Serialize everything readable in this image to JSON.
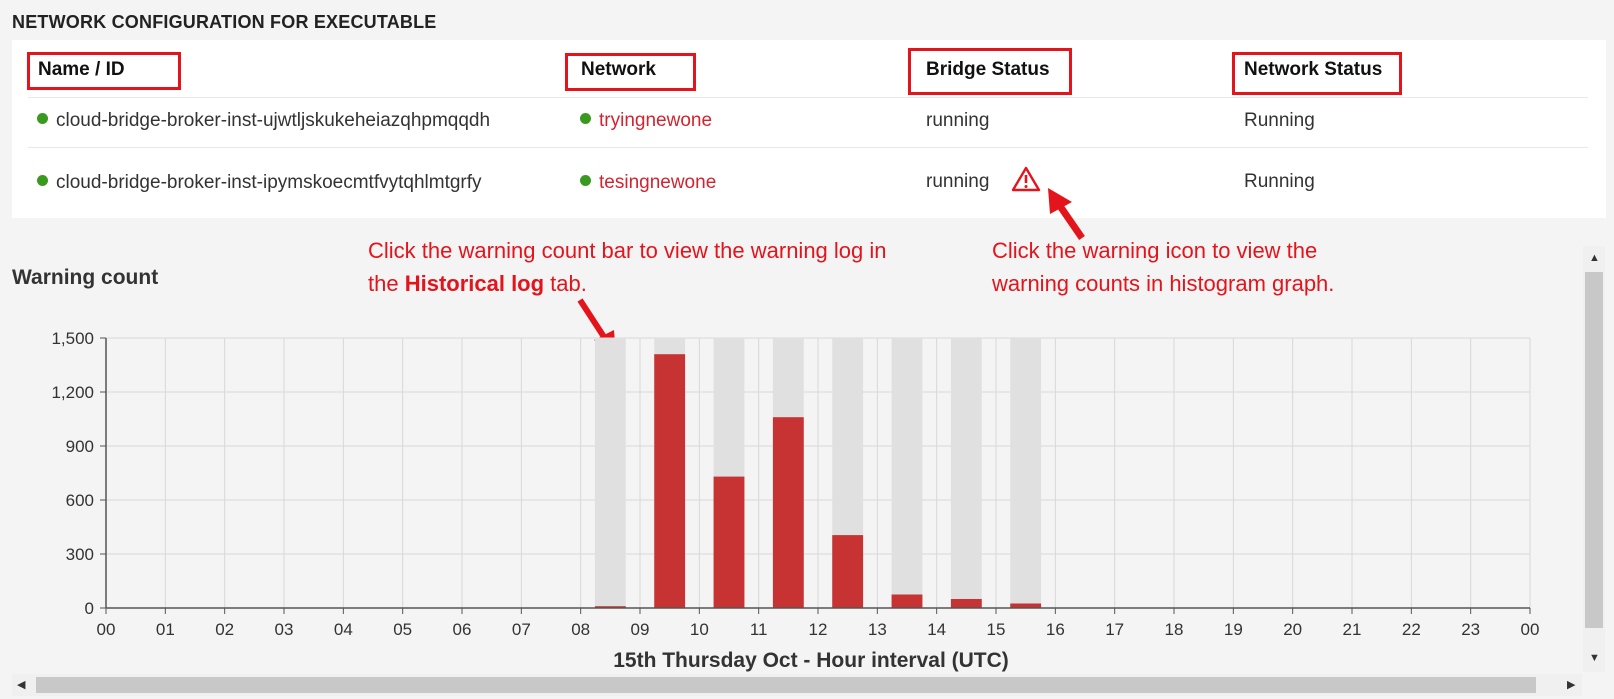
{
  "section_title": "NETWORK CONFIGURATION FOR EXECUTABLE",
  "table": {
    "headers": [
      "Name / ID",
      "Network",
      "Bridge Status",
      "Network Status"
    ],
    "rows": [
      {
        "name": "cloud-bridge-broker-inst-ujwtljskukeheiazqhpmqqdh",
        "network": "tryingnewone",
        "bridge_status": "running",
        "network_status": "Running",
        "warning": false
      },
      {
        "name": "cloud-bridge-broker-inst-ipymskoecmtfvytqhlmtgrfy",
        "network": "tesingnewone",
        "bridge_status": "running",
        "network_status": "Running",
        "warning": true
      }
    ]
  },
  "callouts": {
    "bar_note_line1": "Click the warning count bar to view the warning log in",
    "bar_note_pre": "the ",
    "bar_note_bold": "Historical log",
    "bar_note_post": " tab.",
    "icon_note_line1": "Click the warning icon to view the",
    "icon_note_line2": "warning counts in histogram graph."
  },
  "colors": {
    "accent": "#e3141b",
    "bar": "#c73232",
    "status_dot": "#3a9a1e",
    "link": "#d1242f",
    "highlight_band": "#e0e0e0"
  },
  "icons": {
    "warning": "warning-triangle-icon",
    "status": "green-dot-icon"
  },
  "chart_data": {
    "type": "bar",
    "title": "Warning count",
    "xlabel": "15th Thursday Oct - Hour interval (UTC)",
    "ylabel": "",
    "ylim": [
      0,
      1500
    ],
    "yticks": [
      "0",
      "300",
      "600",
      "900",
      "1,200",
      "1,500"
    ],
    "categories": [
      "00",
      "01",
      "02",
      "03",
      "04",
      "05",
      "06",
      "07",
      "08",
      "09",
      "10",
      "11",
      "12",
      "13",
      "14",
      "15",
      "16",
      "17",
      "18",
      "19",
      "20",
      "21",
      "22",
      "23",
      "00"
    ],
    "values": [
      0,
      0,
      0,
      0,
      0,
      0,
      0,
      0,
      10,
      1410,
      730,
      1060,
      405,
      75,
      50,
      25,
      0,
      0,
      0,
      0,
      0,
      0,
      0,
      0,
      0
    ],
    "highlighted": [
      "08",
      "09",
      "10",
      "11",
      "12",
      "13",
      "14",
      "15"
    ],
    "grid": true
  }
}
